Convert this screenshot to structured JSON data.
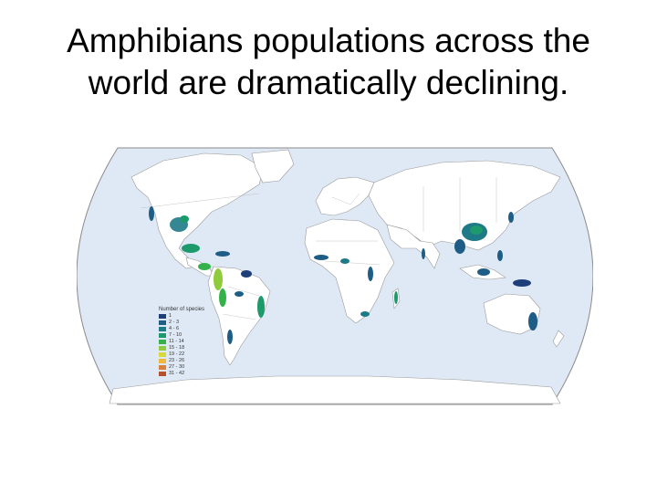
{
  "title": {
    "line1": "Amphibians populations across the",
    "line2": "world are dramatically declining."
  },
  "map": {
    "ocean_color": "#dfe9f5",
    "land_color": "#ffffff",
    "border_color": "#9a9a9a"
  },
  "legend": {
    "title": "Number of species",
    "items": [
      {
        "label": "1",
        "color": "#1f3f7a"
      },
      {
        "label": "2 - 3",
        "color": "#1d5d86"
      },
      {
        "label": "4 - 6",
        "color": "#1f7a88"
      },
      {
        "label": "7 - 10",
        "color": "#1d9a6c"
      },
      {
        "label": "11 - 14",
        "color": "#33b24a"
      },
      {
        "label": "15 - 18",
        "color": "#8fcc3c"
      },
      {
        "label": "19 - 22",
        "color": "#d7d83a"
      },
      {
        "label": "23 - 26",
        "color": "#f0b83a"
      },
      {
        "label": "27 - 30",
        "color": "#d9803a"
      },
      {
        "label": "31 - 42",
        "color": "#b8502e"
      }
    ]
  }
}
